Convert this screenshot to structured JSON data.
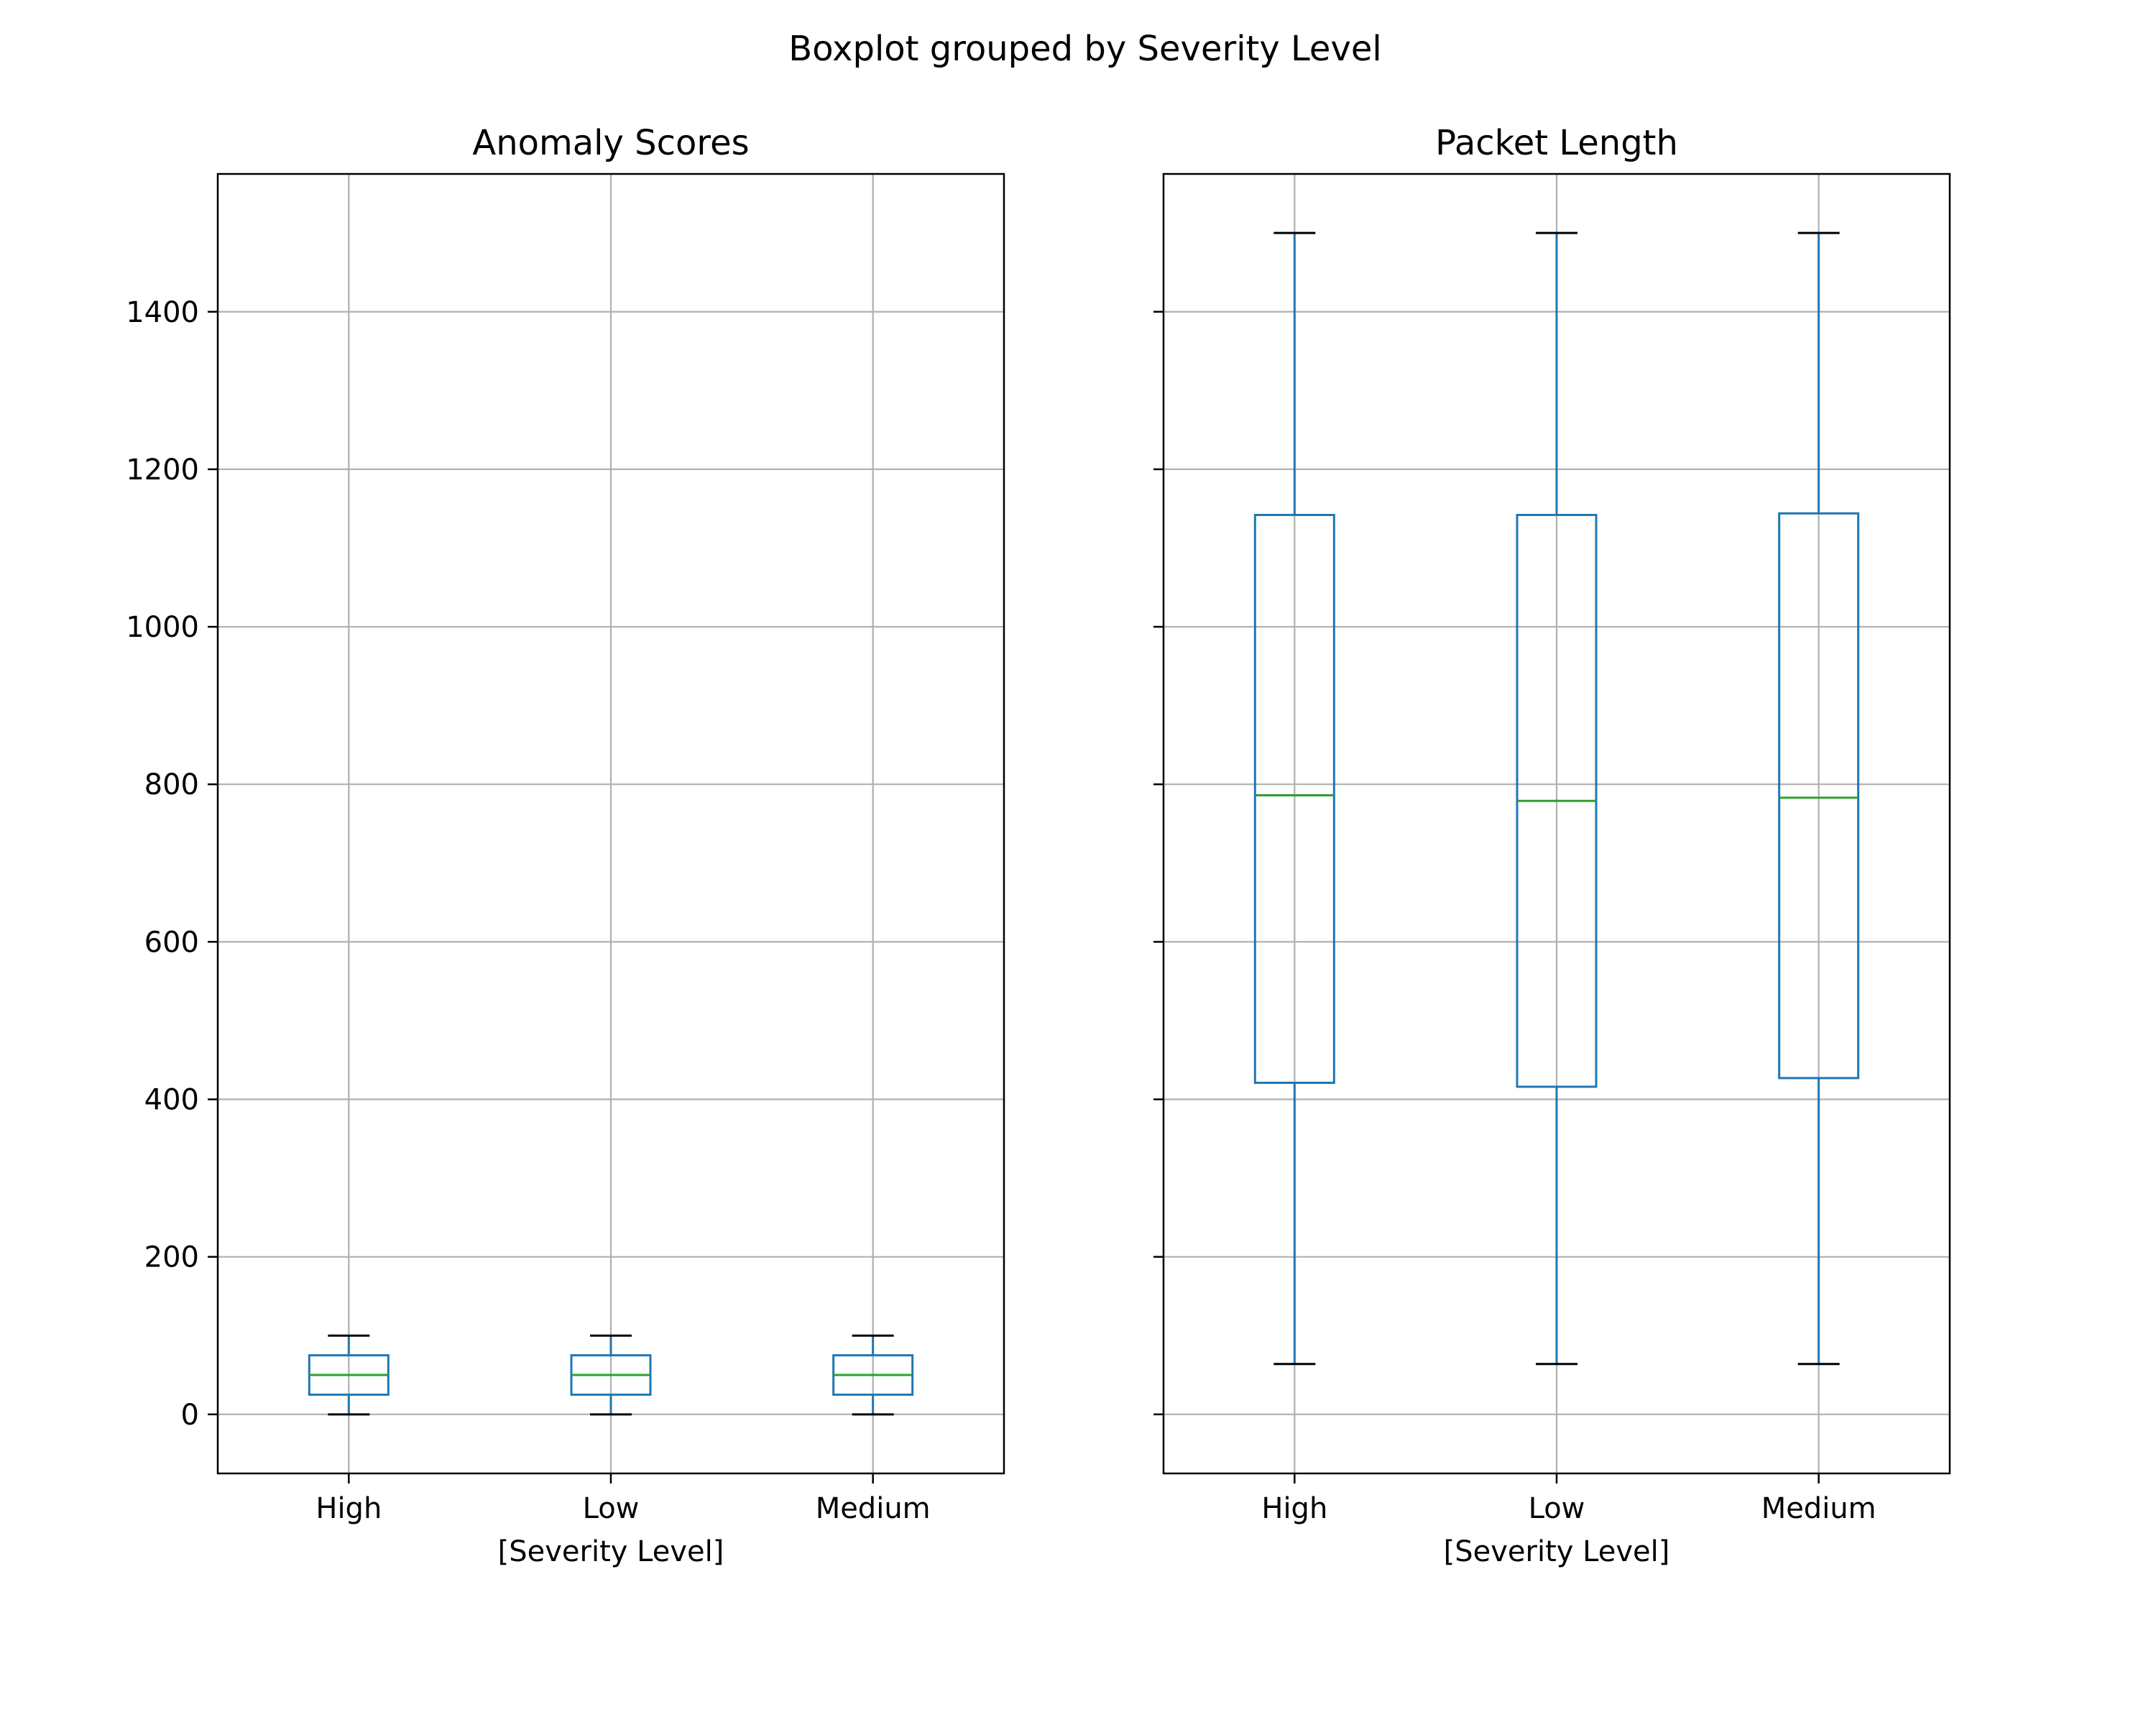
{
  "figure": {
    "suptitle": "Boxplot grouped by Severity Level"
  },
  "colors": {
    "box": "#1f77b4",
    "median": "#2ca02c",
    "cap": "#000000",
    "grid": "#b0b0b0",
    "frame": "#000000"
  },
  "chart_data": [
    {
      "type": "boxplot",
      "title": "Anomaly Scores",
      "xlabel": "[Severity Level]",
      "ylabel": "",
      "ylim": [
        -75,
        1575
      ],
      "yticks": [
        0,
        200,
        400,
        600,
        800,
        1000,
        1200,
        1400
      ],
      "ytick_labels": [
        "0",
        "200",
        "400",
        "600",
        "800",
        "1000",
        "1200",
        "1400"
      ],
      "grid": true,
      "categories": [
        "High",
        "Low",
        "Medium"
      ],
      "boxes": [
        {
          "category": "High",
          "whislo": 0,
          "q1": 25,
          "med": 50,
          "q3": 75,
          "whishi": 100
        },
        {
          "category": "Low",
          "whislo": 0,
          "q1": 25,
          "med": 50,
          "q3": 75,
          "whishi": 100
        },
        {
          "category": "Medium",
          "whislo": 0,
          "q1": 25,
          "med": 50,
          "q3": 75,
          "whishi": 100
        }
      ]
    },
    {
      "type": "boxplot",
      "title": "Packet Length",
      "xlabel": "[Severity Level]",
      "ylabel": "",
      "ylim": [
        -75,
        1575
      ],
      "yticks": [
        0,
        200,
        400,
        600,
        800,
        1000,
        1200,
        1400
      ],
      "ytick_labels": [],
      "grid": true,
      "categories": [
        "High",
        "Low",
        "Medium"
      ],
      "boxes": [
        {
          "category": "High",
          "whislo": 64,
          "q1": 421,
          "med": 786,
          "q3": 1142,
          "whishi": 1500
        },
        {
          "category": "Low",
          "whislo": 64,
          "q1": 416,
          "med": 779,
          "q3": 1142,
          "whishi": 1500
        },
        {
          "category": "Medium",
          "whislo": 64,
          "q1": 427,
          "med": 783,
          "q3": 1144,
          "whishi": 1500
        }
      ]
    }
  ]
}
